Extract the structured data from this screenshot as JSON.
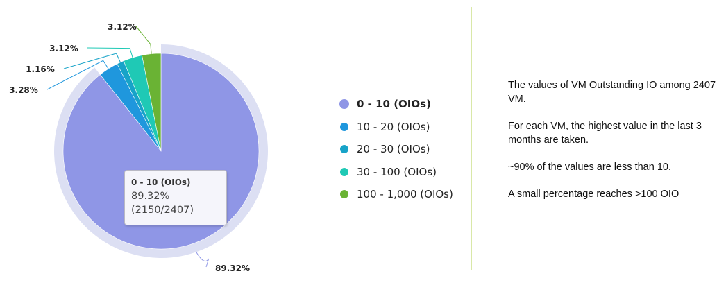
{
  "chart_data": {
    "type": "pie",
    "total_label": "2407",
    "categories": [
      "0 - 10 (OIOs)",
      "10 - 20 (OIOs)",
      "20 - 30 (OIOs)",
      "30 - 100 (OIOs)",
      "100 - 1,000 (OIOs)"
    ],
    "values": [
      89.32,
      3.28,
      1.16,
      3.12,
      3.12
    ],
    "data_labels": [
      "89.32%",
      "3.28%",
      "1.16%",
      "3.12%",
      "3.12%"
    ],
    "colors": [
      "#8f96e6",
      "#1f97dd",
      "#17a3c8",
      "#1fc9b5",
      "#6ab334"
    ],
    "legend_position": "right",
    "highlighted": "0 - 10 (OIOs)"
  },
  "tooltip": {
    "title": "0 - 10 (OIOs)",
    "percent": "89.32%",
    "count": "(2150/2407)"
  },
  "notes": [
    "The values of VM Outstanding IO among 2407 VM.",
    "For each VM, the highest value in the last 3 months are taken.",
    "~90% of the values are less than 10.",
    "A small percentage reaches >100 OIO"
  ]
}
